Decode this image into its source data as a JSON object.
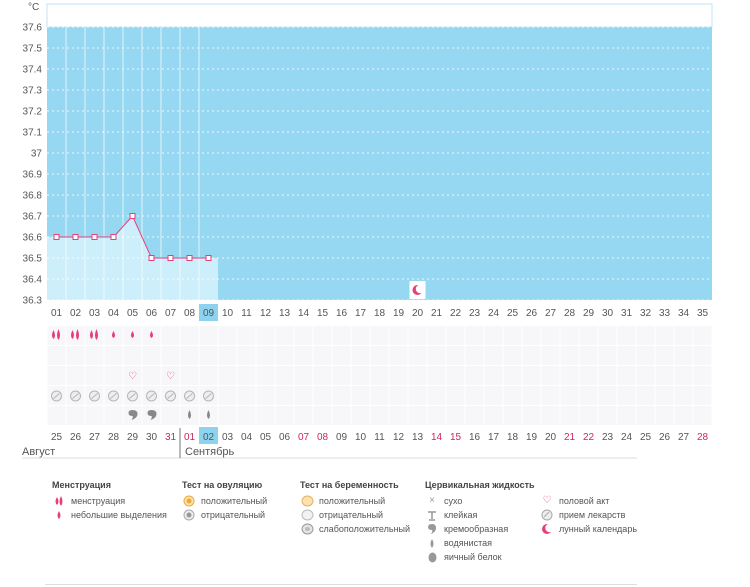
{
  "unit": "°C",
  "chart_data": {
    "type": "line",
    "ylim": [
      36.3,
      37.6
    ],
    "yticks": [
      "37.6",
      "37.5",
      "37.4",
      "37.3",
      "37.2",
      "37.1",
      "37",
      "36.9",
      "36.8",
      "36.7",
      "36.6",
      "36.5",
      "36.4",
      "36.3"
    ],
    "cycle_days": [
      "01",
      "02",
      "03",
      "04",
      "05",
      "06",
      "07",
      "08",
      "09",
      "10",
      "11",
      "12",
      "13",
      "14",
      "15",
      "16",
      "17",
      "18",
      "19",
      "20",
      "21",
      "22",
      "23",
      "24",
      "25",
      "26",
      "27",
      "28",
      "29",
      "30",
      "31",
      "32",
      "33",
      "34",
      "35"
    ],
    "current_cycle_day": "09",
    "temperatures": [
      36.6,
      36.6,
      36.6,
      36.6,
      36.7,
      36.5,
      36.5,
      36.5,
      36.5
    ],
    "moon_day": "20",
    "dates": [
      "25",
      "26",
      "27",
      "28",
      "29",
      "30",
      "31",
      "01",
      "02",
      "03",
      "04",
      "05",
      "06",
      "07",
      "08",
      "09",
      "10",
      "11",
      "12",
      "13",
      "14",
      "15",
      "16",
      "17",
      "18",
      "19",
      "20",
      "21",
      "22",
      "23",
      "24",
      "25",
      "26",
      "27",
      "28"
    ],
    "red_dates": [
      6,
      7,
      13,
      14,
      20,
      21,
      27,
      28,
      34
    ],
    "today_index": 8,
    "menstruation": [
      "heavy",
      "heavy",
      "heavy",
      "light",
      "light",
      "light"
    ],
    "sex_days": [
      4,
      6
    ],
    "pills_days": [
      0,
      1,
      2,
      3,
      4,
      5,
      6,
      7,
      8
    ],
    "cervical": [
      "",
      "",
      "",
      "",
      "creamy",
      "creamy",
      "",
      "watery",
      "watery"
    ],
    "colors": {
      "fill": "#96d8f2",
      "past": "#cdeefb",
      "line": "#e83e7d",
      "today": "#8dd3ee"
    }
  },
  "months": {
    "first": "Август",
    "second": "Сентябрь"
  },
  "legend": {
    "menstruation": {
      "title": "Менструация",
      "items": [
        "менструация",
        "небольшие выделения"
      ]
    },
    "ovulation": {
      "title": "Тест на овуляцию",
      "items": [
        "положительный",
        "отрицательный"
      ]
    },
    "pregnancy": {
      "title": "Тест на беременность",
      "items": [
        "положительный",
        "отрицательный",
        "слабоположительный"
      ]
    },
    "cervical": {
      "title": "Цервикальная жидкость",
      "items": [
        "сухо",
        "клейкая",
        "кремообразная",
        "водянистая",
        "яичный белок"
      ]
    },
    "other": {
      "items": [
        "половой акт",
        "прием лекарств",
        "лунный календарь"
      ]
    }
  }
}
